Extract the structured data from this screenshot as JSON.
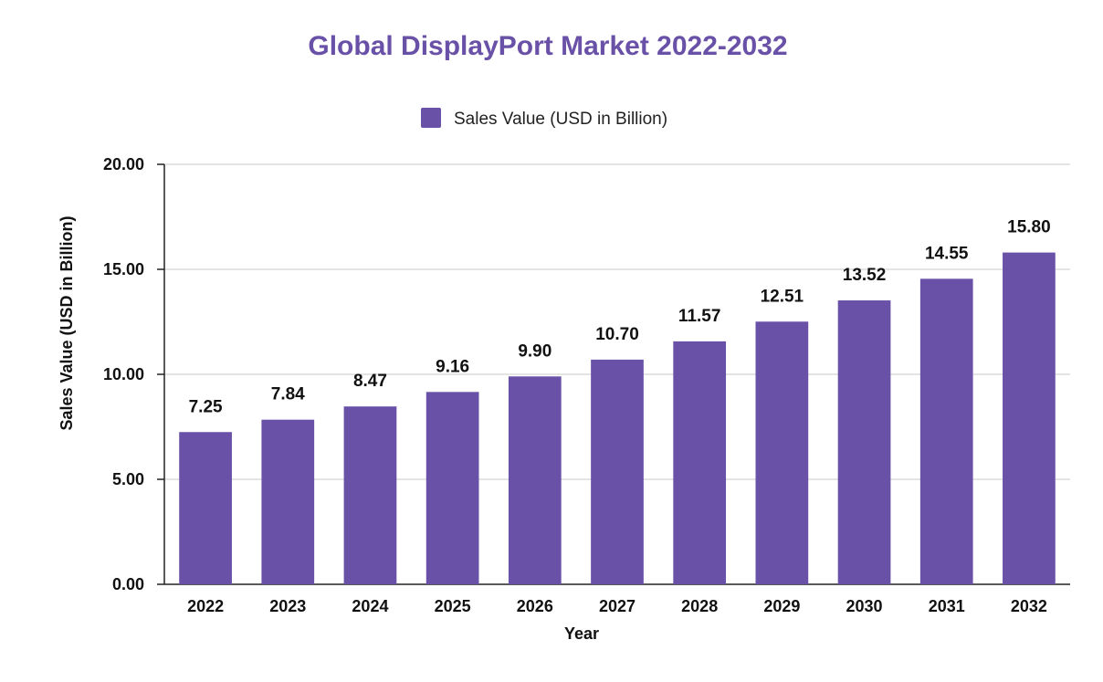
{
  "colors": {
    "bar": "#6a51a8",
    "title": "#6a51a8",
    "grid": "#c8c8c8",
    "axis": "#222222",
    "first_label": "#1f4e5f"
  },
  "chart_data": {
    "type": "bar",
    "title": "Global DisplayPort Market 2022-2032",
    "xlabel": "Year",
    "ylabel": "Sales Value (USD in Billion)",
    "legend": {
      "position": "top-center",
      "entries": [
        "Sales Value (USD in Billion)"
      ]
    },
    "categories": [
      "2022",
      "2023",
      "2024",
      "2025",
      "2026",
      "2027",
      "2028",
      "2029",
      "2030",
      "2031",
      "2032"
    ],
    "series": [
      {
        "name": "Sales Value (USD in Billion)",
        "values": [
          7.25,
          7.84,
          8.47,
          9.16,
          9.9,
          10.7,
          11.57,
          12.51,
          13.52,
          14.55,
          15.8
        ],
        "labels": [
          "7.25",
          "7.84",
          "8.47",
          "9.16",
          "9.90",
          "10.70",
          "11.57",
          "12.51",
          "13.52",
          "14.55",
          "15.80"
        ]
      }
    ],
    "ylim": [
      0,
      20
    ],
    "yticks": [
      0,
      5,
      10,
      15,
      20
    ],
    "ytick_labels": [
      "0.00",
      "5.00",
      "10.00",
      "15.00",
      "20.00"
    ],
    "grid": true
  }
}
